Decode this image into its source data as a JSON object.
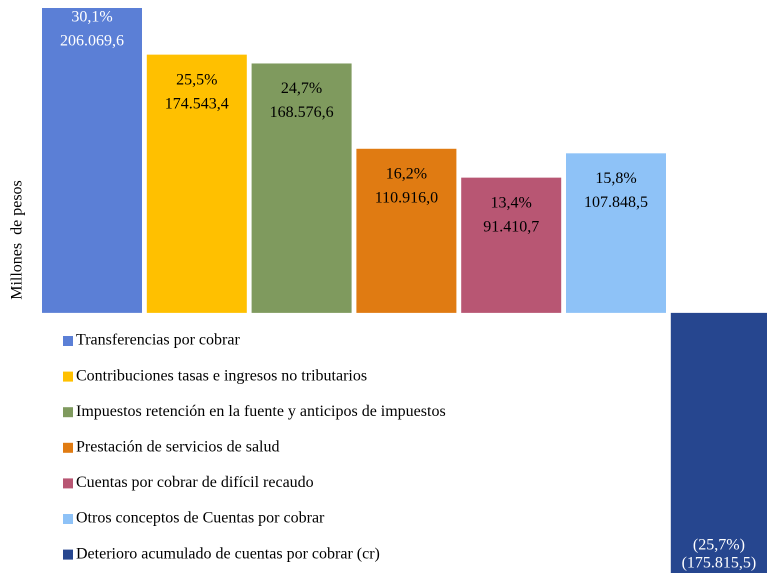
{
  "chart_data": {
    "type": "bar",
    "y_label": "Millones  de pesos",
    "series": [
      {
        "name": "Transferencias por cobrar",
        "color": "#5b7fd6",
        "values": [
          206069.6
        ],
        "value_labels": [
          "206.069,6"
        ],
        "percent": [
          30.1
        ],
        "percent_labels": [
          "30,1%"
        ],
        "label_color": "#ffffff"
      },
      {
        "name": "Contribuciones tasas e ingresos no tributarios",
        "color": "#ffc000",
        "values": [
          174543.4
        ],
        "value_labels": [
          "174.543,4"
        ],
        "percent": [
          25.5
        ],
        "percent_labels": [
          "25,5%"
        ],
        "label_color": "#000000"
      },
      {
        "name": "Impuestos retención en la fuente y anticipos de impuestos",
        "color": "#7f9a5e",
        "values": [
          168576.6
        ],
        "value_labels": [
          "168.576,6"
        ],
        "percent": [
          24.7
        ],
        "percent_labels": [
          "24,7%"
        ],
        "label_color": "#000000"
      },
      {
        "name": "Prestación de servicios de salud",
        "color": "#e07b12",
        "values": [
          110916.0
        ],
        "value_labels": [
          "110.916,0"
        ],
        "percent": [
          16.2
        ],
        "percent_labels": [
          "16,2%"
        ],
        "label_color": "#000000"
      },
      {
        "name": "Cuentas por cobrar de difícil recaudo",
        "color": "#b85673",
        "values": [
          91410.7
        ],
        "value_labels": [
          "91.410,7"
        ],
        "percent": [
          13.4
        ],
        "percent_labels": [
          "13,4%"
        ],
        "label_color": "#000000"
      },
      {
        "name": "Otros conceptos de Cuentas por cobrar",
        "color": "#8ec2f7",
        "values": [
          107848.5
        ],
        "value_labels": [
          "107.848,5"
        ],
        "percent": [
          15.8
        ],
        "percent_labels": [
          "15,8%"
        ],
        "label_color": "#000000"
      },
      {
        "name": "Deterioro acumulado de cuentas por cobrar (cr)",
        "color": "#26468f",
        "values": [
          -175815.5
        ],
        "value_labels": [
          "(175.815,5)"
        ],
        "percent": [
          -25.7
        ],
        "percent_labels": [
          "(25,7%)"
        ],
        "label_color": "#ffffff"
      }
    ]
  }
}
